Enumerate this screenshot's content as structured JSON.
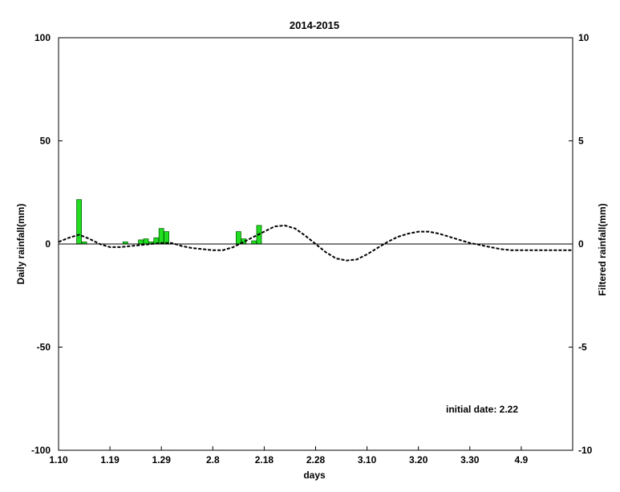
{
  "chart_data": {
    "type": "bar",
    "title": "2014-2015",
    "xlabel": "days",
    "ylabel": "Daily rainfall(mm)",
    "y2label": "Filtered rainfall(mm)",
    "annotation": "initial date: 2.22",
    "x_ticks": [
      "1.10",
      "1.19",
      "1.29",
      "2.8",
      "2.18",
      "2.28",
      "3.10",
      "3.20",
      "3.30",
      "4.9"
    ],
    "xlim": [
      0,
      100
    ],
    "ylim": [
      -100,
      100
    ],
    "y_ticks": [
      100,
      50,
      0,
      -50,
      -100
    ],
    "y2lim": [
      -10,
      10
    ],
    "y2_ticks": [
      10,
      5,
      0,
      -5,
      -10
    ],
    "grid": false,
    "bar_color": "#22dd22",
    "series": [
      {
        "type": "bar",
        "axis": "left",
        "x": [
          4,
          5,
          13,
          16,
          17,
          18,
          19,
          20,
          21,
          35,
          36,
          38,
          39
        ],
        "values": [
          21.5,
          1.0,
          1.0,
          2.0,
          2.5,
          1.0,
          3.0,
          7.5,
          6.0,
          6.0,
          2.5,
          1.5,
          9.0
        ]
      },
      {
        "type": "line",
        "axis": "right",
        "style": "dashed",
        "x": [
          0,
          2,
          4,
          6,
          8,
          10,
          12,
          14,
          16,
          18,
          20,
          22,
          24,
          26,
          28,
          30,
          32,
          34,
          36,
          38,
          40,
          42,
          44,
          46,
          48,
          50,
          52,
          54,
          56,
          58,
          60,
          62,
          64,
          66,
          68,
          70,
          72,
          74,
          76,
          78,
          80,
          82,
          84,
          86,
          88,
          90,
          92,
          94,
          96,
          98,
          100
        ],
        "values": [
          0.1,
          0.3,
          0.45,
          0.25,
          0.0,
          -0.15,
          -0.15,
          -0.1,
          -0.05,
          0.0,
          0.05,
          0.05,
          -0.1,
          -0.2,
          -0.25,
          -0.3,
          -0.3,
          -0.15,
          0.1,
          0.35,
          0.6,
          0.85,
          0.9,
          0.75,
          0.4,
          0.0,
          -0.4,
          -0.7,
          -0.8,
          -0.75,
          -0.5,
          -0.2,
          0.1,
          0.35,
          0.5,
          0.6,
          0.6,
          0.5,
          0.35,
          0.2,
          0.05,
          -0.05,
          -0.15,
          -0.25,
          -0.3,
          -0.3,
          -0.3,
          -0.3,
          -0.3,
          -0.3,
          -0.3
        ]
      }
    ]
  }
}
